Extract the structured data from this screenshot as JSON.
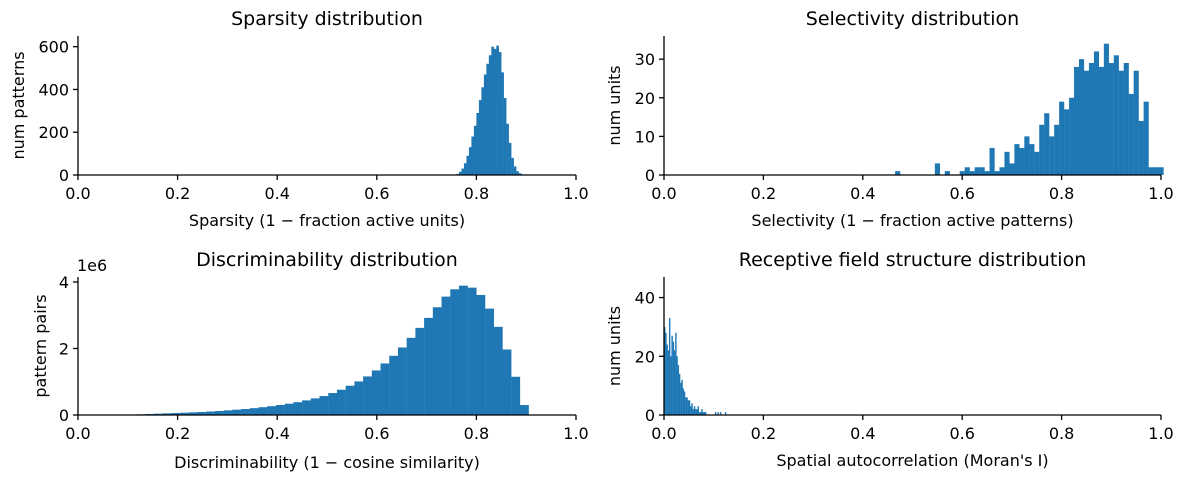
{
  "chart_data": [
    {
      "type": "bar",
      "title": "Sparsity distribution",
      "xlabel": "Sparsity (1 −  fraction active units)",
      "ylabel": "num patterns",
      "xlim": [
        0,
        1
      ],
      "ylim": [
        0,
        650
      ],
      "xticks": [
        "0.0",
        "0.2",
        "0.4",
        "0.6",
        "0.8",
        "1.0"
      ],
      "yticks": [
        "0",
        "200",
        "400",
        "600"
      ],
      "multiplier": "",
      "color": "#1f77b4",
      "grid": false,
      "bin_start": 0.76,
      "bin_width": 0.005,
      "values": [
        5,
        15,
        30,
        55,
        90,
        130,
        180,
        230,
        290,
        350,
        410,
        470,
        520,
        560,
        600,
        590,
        605,
        575,
        480,
        360,
        240,
        150,
        80,
        40,
        18,
        8,
        3
      ]
    },
    {
      "type": "bar",
      "title": "Selectivity distribution",
      "xlabel": "Selectivity (1 −  fraction active patterns)",
      "ylabel": "num units",
      "xlim": [
        0,
        1
      ],
      "ylim": [
        0,
        36
      ],
      "xticks": [
        "0.0",
        "0.2",
        "0.4",
        "0.6",
        "0.8",
        "1.0"
      ],
      "yticks": [
        "0",
        "10",
        "20",
        "30"
      ],
      "multiplier": "",
      "color": "#1f77b4",
      "grid": false,
      "bin_start": 0.465,
      "bin_width": 0.01,
      "values": [
        1,
        0,
        0,
        0,
        0,
        0,
        0,
        0,
        3,
        0,
        1,
        0,
        0,
        1,
        2,
        1,
        2,
        2,
        1,
        7,
        1,
        2,
        6,
        3,
        8,
        7,
        10,
        8,
        6,
        13,
        16,
        10,
        13,
        19,
        17,
        20,
        28,
        30,
        27,
        29,
        32,
        28,
        34,
        29,
        31,
        27,
        29,
        21,
        27,
        14,
        19,
        2,
        2,
        2
      ]
    },
    {
      "type": "bar",
      "title": "Discriminability distribution",
      "xlabel": "Discriminability (1 −  cosine similarity)",
      "ylabel": "pattern pairs",
      "xlim": [
        0,
        1
      ],
      "ylim": [
        0,
        4150000
      ],
      "xticks": [
        "0.0",
        "0.2",
        "0.4",
        "0.6",
        "0.8",
        "1.0"
      ],
      "yticks": [
        "0",
        "2",
        "4"
      ],
      "multiplier": "1e6",
      "color": "#1f77b4",
      "grid": false,
      "bin_start": 0.1,
      "bin_width": 0.0175,
      "values": [
        10000,
        20000,
        30000,
        40000,
        50000,
        60000,
        70000,
        80000,
        90000,
        105000,
        120000,
        140000,
        160000,
        180000,
        205000,
        235000,
        265000,
        300000,
        340000,
        385000,
        440000,
        500000,
        570000,
        660000,
        760000,
        880000,
        1010000,
        1160000,
        1340000,
        1550000,
        1780000,
        2030000,
        2320000,
        2620000,
        2920000,
        3240000,
        3560000,
        3780000,
        3890000,
        3830000,
        3610000,
        3200000,
        2650000,
        1970000,
        1150000,
        300000
      ]
    },
    {
      "type": "bar",
      "title": "Receptive field structure distribution",
      "xlabel": "Spatial autocorrelation (Moran's I)",
      "ylabel": "num units",
      "xlim": [
        0,
        1
      ],
      "ylim": [
        0,
        47
      ],
      "xticks": [
        "0.0",
        "0.2",
        "0.4",
        "0.6",
        "0.8",
        "1.0"
      ],
      "yticks": [
        "0",
        "20",
        "40"
      ],
      "multiplier": "",
      "color": "#1f77b4",
      "grid": false,
      "bin_start": 0.0,
      "bin_width": 0.0025,
      "values": [
        30,
        28,
        24,
        22,
        33,
        20,
        27,
        25,
        22,
        28,
        20,
        17,
        14,
        11,
        12,
        9,
        8,
        6,
        6,
        5,
        5,
        3,
        4,
        2,
        3,
        2,
        2,
        3,
        1,
        1,
        2,
        1,
        1,
        1,
        0,
        0,
        0,
        0,
        0,
        0,
        0,
        1,
        0,
        1,
        0,
        1,
        0,
        0,
        0,
        1,
        0,
        0,
        0
      ]
    }
  ]
}
